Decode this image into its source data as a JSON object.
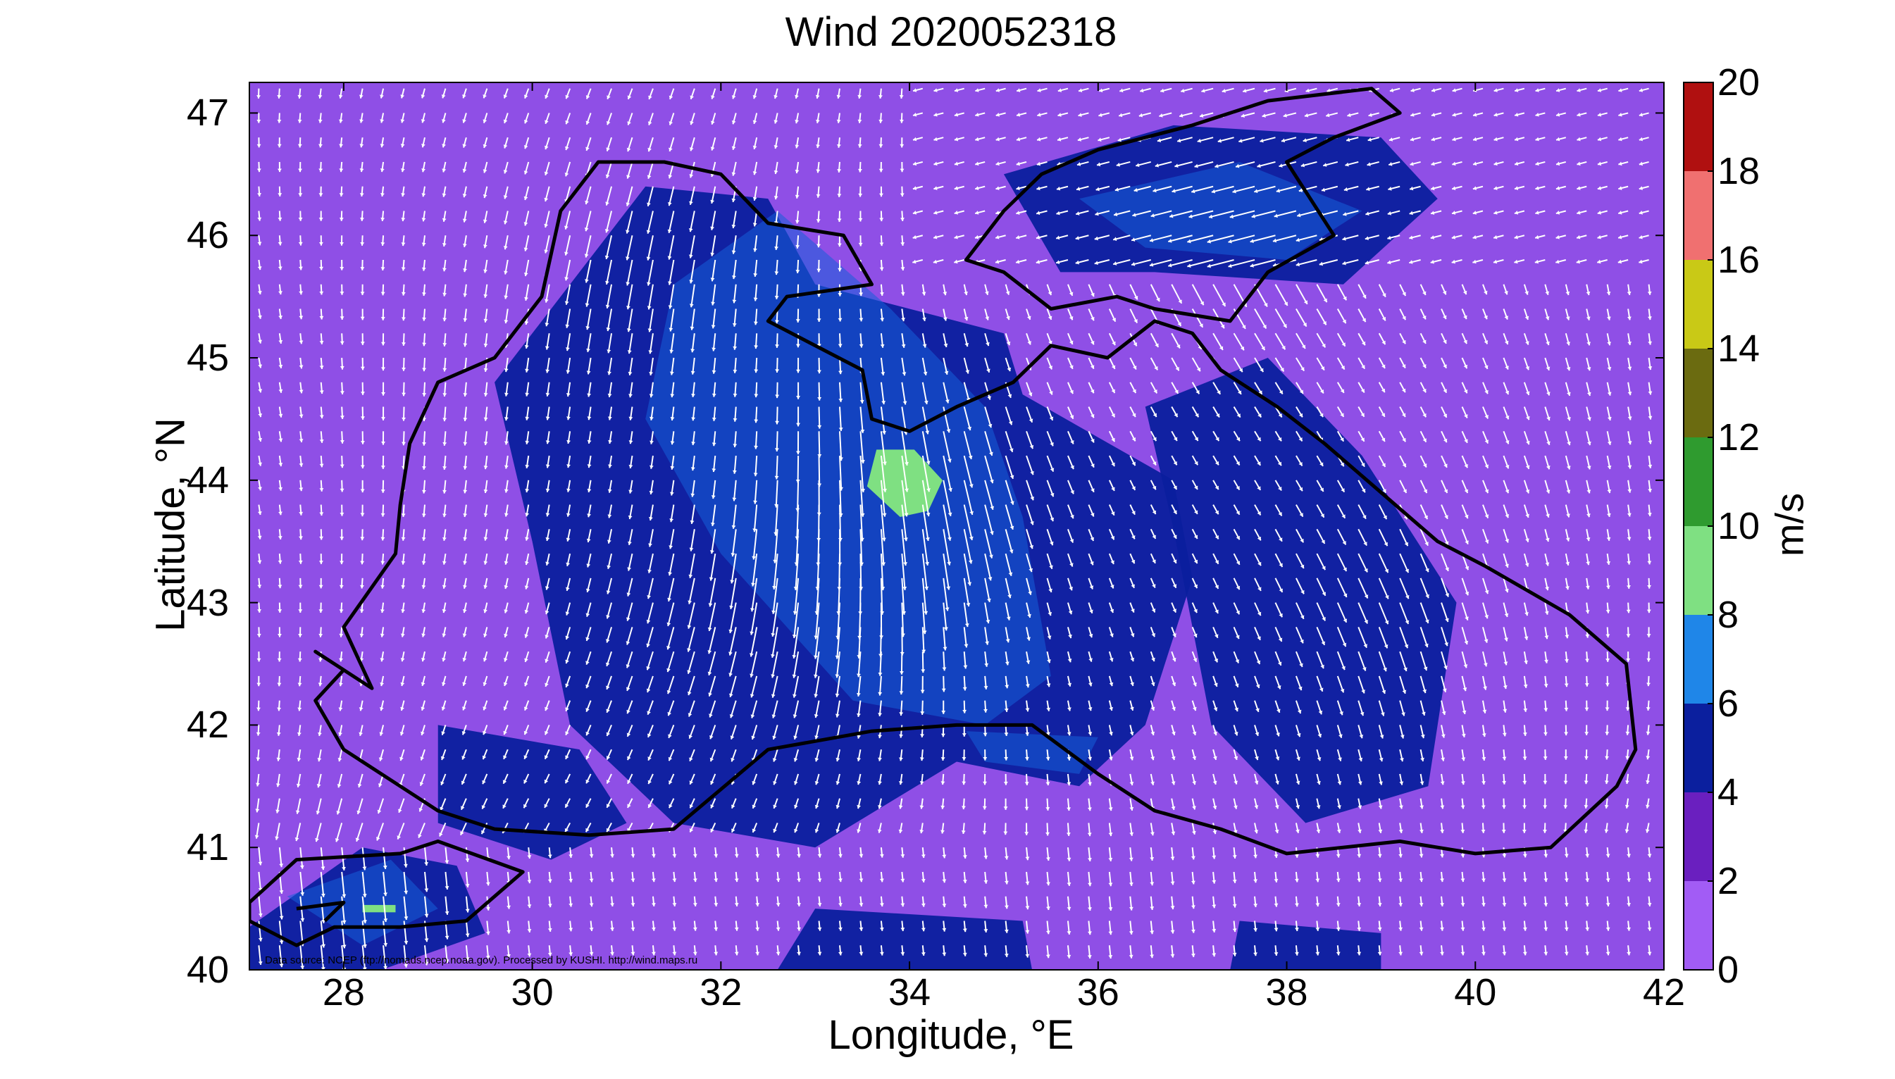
{
  "title": "Wind 2020052318",
  "xlabel": "Longitude, °E",
  "ylabel": "Latitude, °N",
  "colorbar": {
    "label": "m/s",
    "ticks": [
      "0",
      "2",
      "4",
      "6",
      "8",
      "10",
      "12",
      "14",
      "16",
      "18",
      "20"
    ],
    "range": [
      0,
      20
    ],
    "colors": [
      {
        "from": 0,
        "to": 2,
        "color": "#a25cf5"
      },
      {
        "from": 2,
        "to": 4,
        "color": "#6a1fbf"
      },
      {
        "from": 4,
        "to": 6,
        "color": "#0b1f9e"
      },
      {
        "from": 6,
        "to": 8,
        "color": "#1f86e8"
      },
      {
        "from": 8,
        "to": 10,
        "color": "#7fe082"
      },
      {
        "from": 10,
        "to": 12,
        "color": "#2f9b2f"
      },
      {
        "from": 12,
        "to": 14,
        "color": "#6b6b10"
      },
      {
        "from": 14,
        "to": 16,
        "color": "#c9c916"
      },
      {
        "from": 16,
        "to": 18,
        "color": "#f07070"
      },
      {
        "from": 18,
        "to": 20,
        "color": "#b01010"
      }
    ]
  },
  "axes": {
    "xlim": [
      27,
      42
    ],
    "ylim": [
      40,
      47.25
    ],
    "xticks": [
      "28",
      "30",
      "32",
      "34",
      "36",
      "38",
      "40",
      "42"
    ],
    "yticks": [
      "40",
      "41",
      "42",
      "43",
      "44",
      "45",
      "46",
      "47"
    ]
  },
  "source_note": "Data source: NCEP (ftp://nomads.ncep.noaa.gov). Processed by KUSHI. http://wind.maps.ru",
  "colors": {
    "background_field": "#8f4fe6",
    "coastline": "#000000",
    "vectors": "#ffffff"
  },
  "chart_data": {
    "type": "heatmap",
    "title": "Wind 2020052318",
    "xlabel": "Longitude, °E",
    "ylabel": "Latitude, °N",
    "xlim": [
      27,
      42
    ],
    "ylim": [
      40,
      47.25
    ],
    "colorbar_label": "m/s",
    "colorbar_range": [
      0,
      20
    ],
    "wind_speed_regions": [
      {
        "lon": 34.0,
        "lat": 44.0,
        "speed": 8.5
      },
      {
        "lon": 33.5,
        "lat": 43.3,
        "speed": 6.5
      },
      {
        "lon": 32.0,
        "lat": 43.0,
        "speed": 5.0
      },
      {
        "lon": 37.5,
        "lat": 45.9,
        "speed": 6.0
      },
      {
        "lon": 31.2,
        "lat": 45.8,
        "speed": 5.5
      },
      {
        "lon": 39.0,
        "lat": 43.0,
        "speed": 4.5
      },
      {
        "lon": 28.0,
        "lat": 40.5,
        "speed": 6.0
      },
      {
        "lon": 29.0,
        "lat": 44.5,
        "speed": 1.5
      },
      {
        "lon": 41.0,
        "lat": 44.5,
        "speed": 1.5
      },
      {
        "lon": 36.0,
        "lat": 40.7,
        "speed": 1.5
      }
    ],
    "flow_direction": "north-westerly to northerly over the basin (vectors point south / south-east)"
  }
}
